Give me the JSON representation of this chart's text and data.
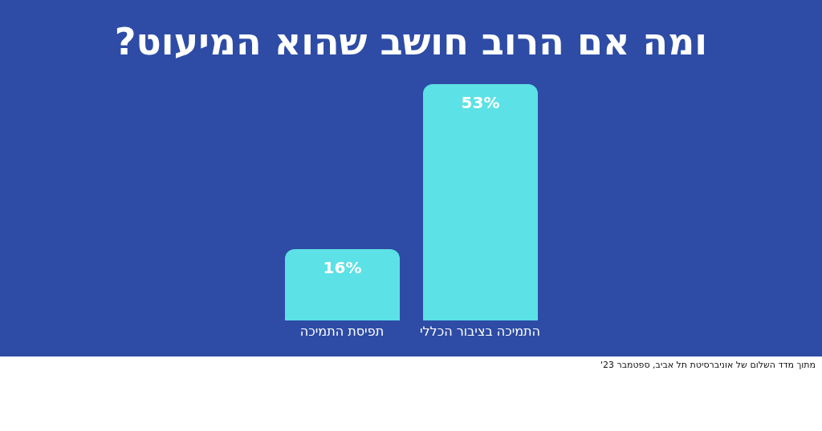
{
  "chart_data": {
    "type": "bar",
    "title": "ומה אם הרוב חושב שהוא המיעוט?",
    "categories": [
      "תפיסת התמיכה",
      "התמיכה בציבור הכללי"
    ],
    "values": [
      16,
      53
    ],
    "value_labels": [
      "16%",
      "53%"
    ],
    "color": "#5ce1e6",
    "grid": false,
    "legend": false,
    "annotations": [
      "מתוך מדד השלום של אוניברסיטת תל אביב, ספטמבר 23'"
    ]
  }
}
